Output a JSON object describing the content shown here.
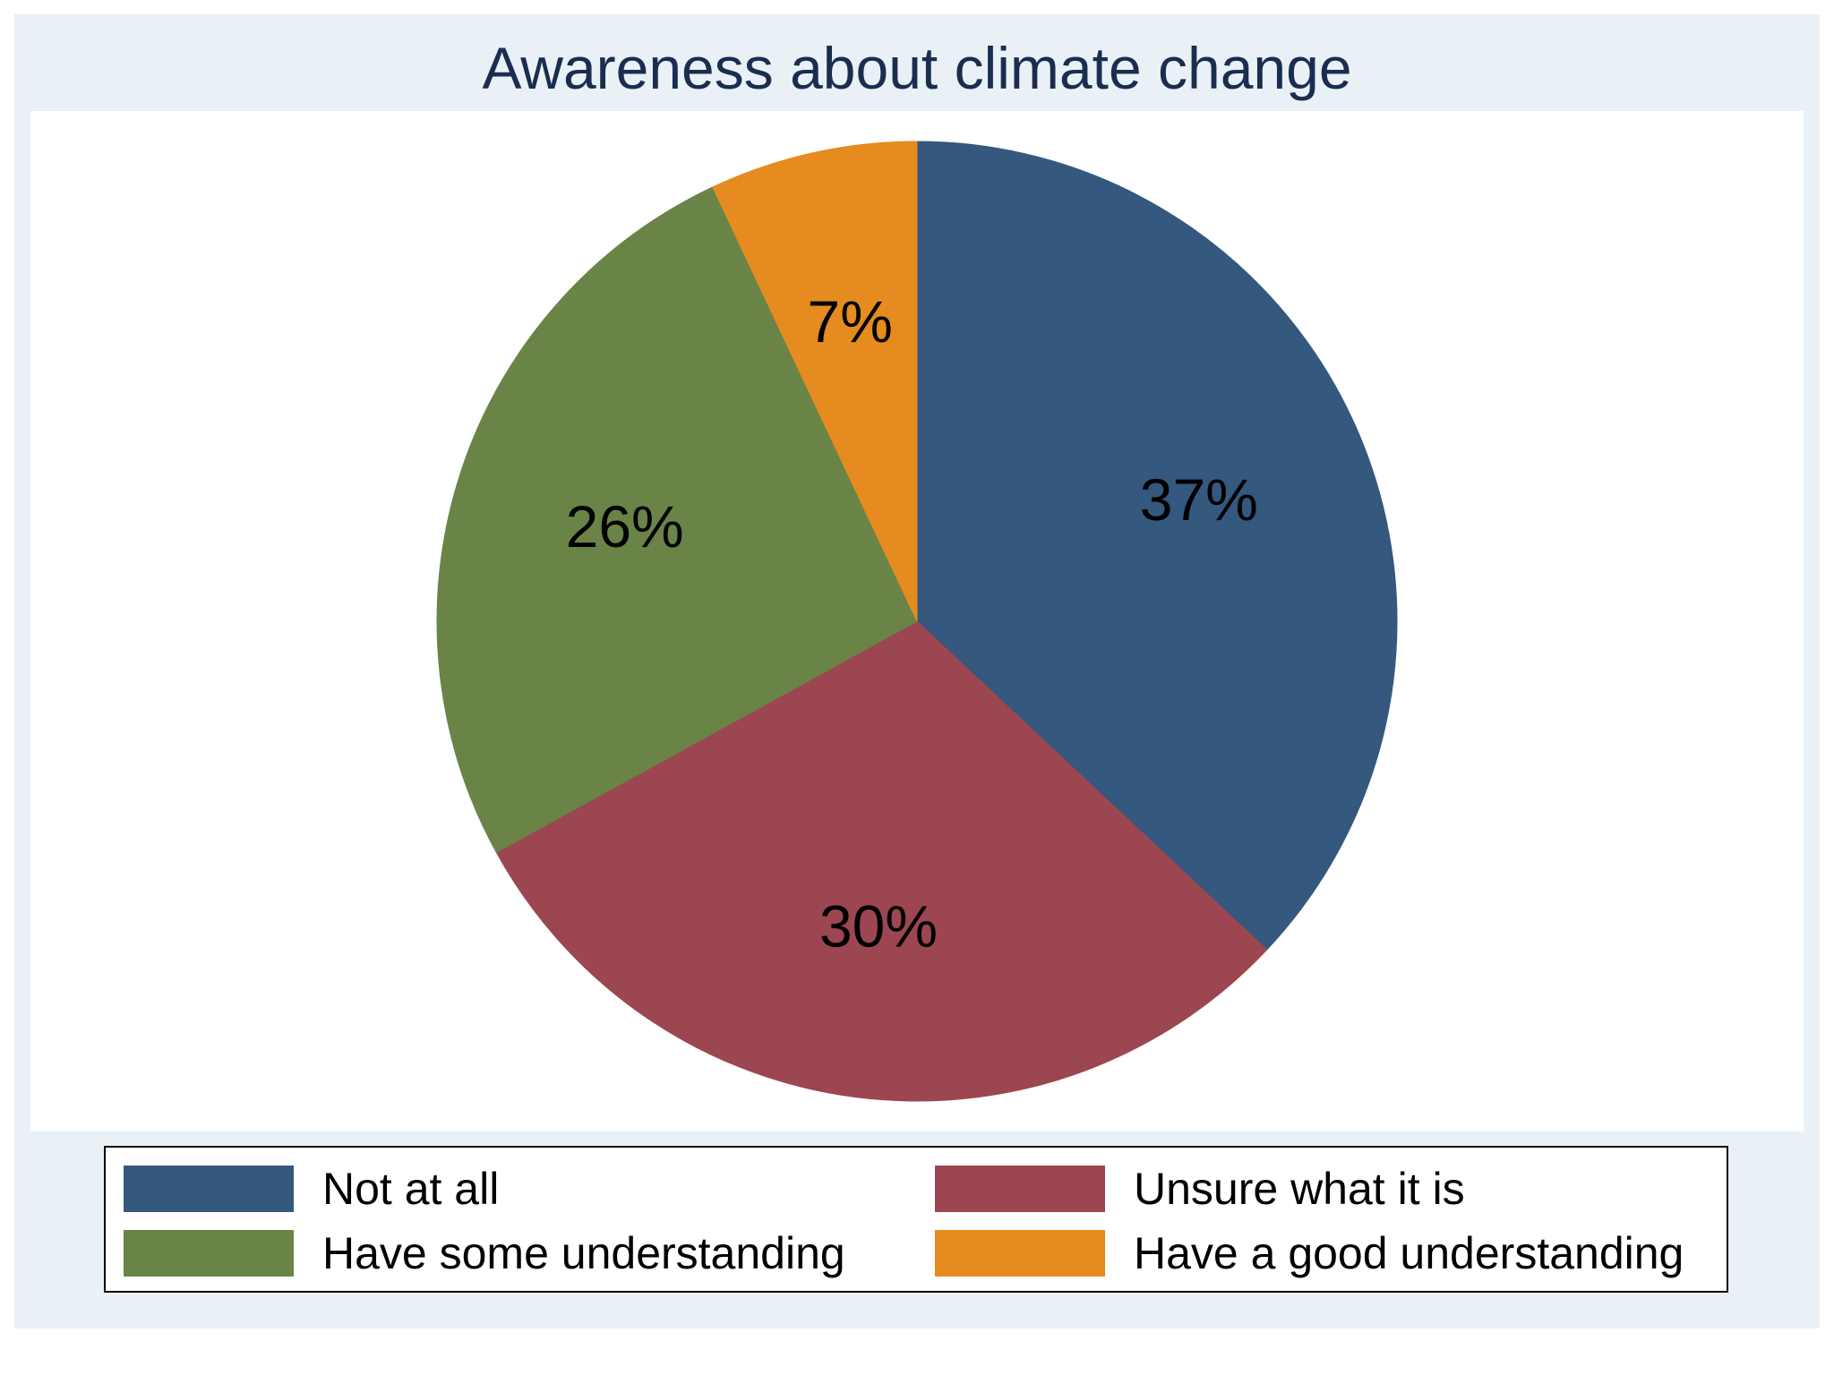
{
  "chart_data": {
    "type": "pie",
    "title": "Awareness about climate change",
    "slices": [
      {
        "label": "Not at all",
        "value": 37,
        "display": "37%",
        "color": "#34587e"
      },
      {
        "label": "Unsure what it is",
        "value": 30,
        "display": "30%",
        "color": "#9c4651"
      },
      {
        "label": "Have some understanding",
        "value": 26,
        "display": "26%",
        "color": "#6a8347"
      },
      {
        "label": "Have a good understanding",
        "value": 7,
        "display": "7%",
        "color": "#e58b1f"
      }
    ],
    "start": "12 o'clock",
    "direction": "clockwise",
    "legend_position": "bottom",
    "legend_columns": 2
  }
}
